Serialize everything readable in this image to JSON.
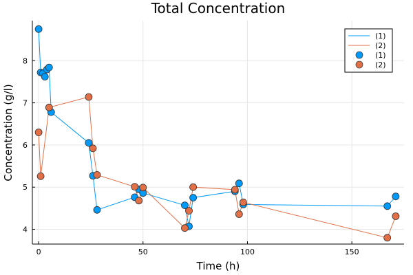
{
  "chart_data": {
    "type": "scatter",
    "title": "Total Concentration",
    "xlabel": "Time (h)",
    "ylabel": "Concentration (g/l)",
    "xlim": [
      -3,
      175
    ],
    "ylim": [
      3.65,
      8.95
    ],
    "xticks": [
      0,
      50,
      100,
      150
    ],
    "yticks": [
      4,
      5,
      6,
      7,
      8
    ],
    "grid": true,
    "legend_position": "top-right",
    "legend": [
      "(1)",
      "(2)",
      "(1)",
      "(2)"
    ],
    "series": [
      {
        "name": "(1)",
        "color": "#009AFA",
        "x": [
          0,
          1,
          2,
          3,
          4,
          5,
          6,
          24,
          26,
          28,
          46,
          48,
          50,
          70,
          72,
          74,
          94,
          96,
          98,
          167,
          171
        ],
        "y": [
          8.75,
          7.72,
          7.7,
          7.62,
          7.79,
          7.84,
          6.78,
          6.05,
          5.27,
          4.46,
          4.76,
          4.95,
          4.86,
          4.57,
          4.07,
          4.75,
          4.9,
          5.09,
          4.59,
          4.55,
          4.78
        ]
      },
      {
        "name": "(2)",
        "color": "#E26F46",
        "x": [
          0,
          1,
          5,
          24,
          26,
          28,
          46,
          48,
          50,
          70,
          72,
          74,
          94,
          96,
          98,
          167,
          171
        ],
        "y": [
          6.3,
          5.26,
          6.89,
          7.14,
          5.92,
          5.29,
          5.01,
          4.68,
          4.99,
          4.03,
          4.44,
          5.0,
          4.94,
          4.36,
          4.64,
          3.8,
          4.31
        ]
      }
    ]
  }
}
